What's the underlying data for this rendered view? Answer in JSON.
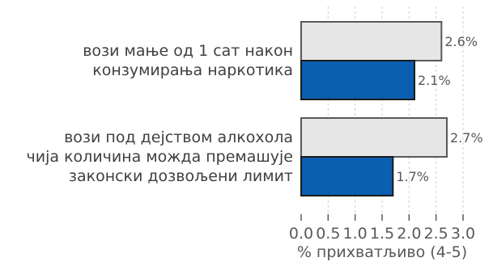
{
  "chart_data": {
    "type": "bar",
    "orientation": "horizontal",
    "categories": [
      [
        "вози мање од 1 сат након",
        "конзумирања наркотика"
      ],
      [
        "вози под дејством алкохола",
        "чија количина можда премашује",
        "законски дозвољени лимит"
      ]
    ],
    "series": [
      {
        "values": [
          2.6,
          2.7
        ],
        "labels": [
          "2.6%",
          "2.7%"
        ],
        "color": "#e6e6e6",
        "stroke": "#595959"
      },
      {
        "values": [
          2.1,
          1.7
        ],
        "labels": [
          "2.1%",
          "1.7%"
        ],
        "color": "#0b5fb0",
        "stroke": "#1a1a1a"
      }
    ],
    "xlabel": "% прихватљиво (4-5)",
    "xlim": [
      0.0,
      3.0
    ],
    "xticks": [
      "0.0",
      "0.5",
      "1.0",
      "1.5",
      "2.0",
      "2.5",
      "3.0"
    ],
    "grid": "vertical-dashed",
    "legend": "none"
  }
}
